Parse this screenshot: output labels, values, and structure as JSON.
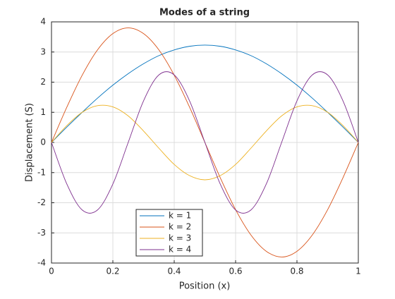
{
  "chart_data": {
    "type": "line",
    "title": "Modes of a string",
    "x_label": "Position (x)",
    "y_label": "Displacement (S)",
    "x": [
      0,
      0.05,
      0.1,
      0.15,
      0.2,
      0.25,
      0.3,
      0.35,
      0.4,
      0.45,
      0.5,
      0.55,
      0.6,
      0.65,
      0.7,
      0.75,
      0.8,
      0.85,
      0.9,
      0.95,
      1
    ],
    "series": [
      {
        "name": "k = 1",
        "color": "#0072bd",
        "values": [
          0,
          0.51,
          1.0,
          1.47,
          1.9,
          2.28,
          2.61,
          2.88,
          3.07,
          3.19,
          3.23,
          3.19,
          3.07,
          2.88,
          2.61,
          2.28,
          1.9,
          1.47,
          1.0,
          0.51,
          0
        ]
      },
      {
        "name": "k = 2",
        "color": "#d95319",
        "values": [
          0,
          1.17,
          2.23,
          3.07,
          3.61,
          3.8,
          3.61,
          3.07,
          2.23,
          1.17,
          0,
          -1.17,
          -2.23,
          -3.07,
          -3.61,
          -3.8,
          -3.61,
          -3.07,
          -2.23,
          -1.17,
          0
        ]
      },
      {
        "name": "k = 3",
        "color": "#edb120",
        "values": [
          0,
          0.56,
          1.0,
          1.22,
          1.18,
          0.88,
          0.38,
          -0.19,
          -0.73,
          -1.1,
          -1.24,
          -1.1,
          -0.73,
          -0.19,
          0.38,
          0.88,
          1.18,
          1.22,
          1.0,
          0.56,
          0
        ]
      },
      {
        "name": "k = 4",
        "color": "#7e2f8e",
        "values": [
          0,
          -1.38,
          -2.24,
          -2.24,
          -1.38,
          0,
          1.38,
          2.24,
          2.24,
          1.38,
          0,
          -1.38,
          -2.24,
          -2.24,
          -1.38,
          0,
          1.38,
          2.24,
          2.24,
          1.38,
          0
        ]
      }
    ],
    "xlim": [
      0,
      1
    ],
    "xticks": [
      0,
      0.2,
      0.4,
      0.6,
      0.8,
      1
    ],
    "ylim": [
      -4,
      4
    ],
    "yticks": [
      -4,
      -3,
      -2,
      -1,
      0,
      1,
      2,
      3,
      4
    ],
    "grid": true
  }
}
